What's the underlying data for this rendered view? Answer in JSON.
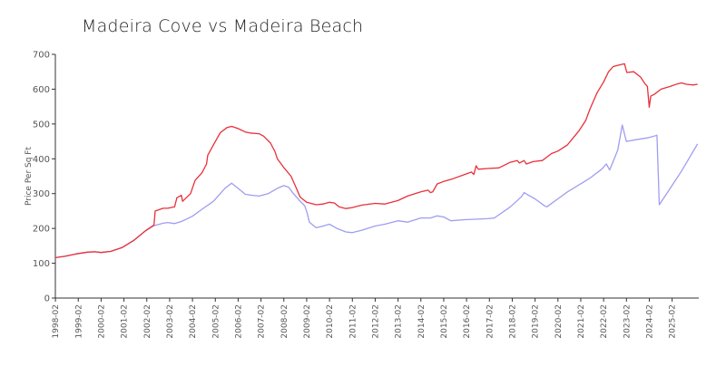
{
  "chart_data": {
    "type": "line",
    "title": "Madeira Cove vs Madeira Beach",
    "xlabel": "",
    "ylabel": "Price Per Sq Ft",
    "ylim": [
      0,
      700
    ],
    "yticks": [
      0,
      100,
      200,
      300,
      400,
      500,
      600,
      700
    ],
    "xlim": [
      1998.08,
      2026.25
    ],
    "xticks": [
      "1998-02",
      "1999-02",
      "2000-02",
      "2001-02",
      "2002-02",
      "2003-02",
      "2004-02",
      "2005-02",
      "2006-02",
      "2007-02",
      "2008-02",
      "2009-02",
      "2010-02",
      "2011-02",
      "2012-02",
      "2013-02",
      "2014-02",
      "2015-02",
      "2016-02",
      "2017-02",
      "2018-02",
      "2019-02",
      "2020-02",
      "2021-02",
      "2022-02",
      "2023-02",
      "2024-02",
      "2025-02"
    ],
    "grid": false,
    "legend": "none",
    "series": [
      {
        "color": "#e8303a",
        "points": [
          [
            1998.08,
            116
          ],
          [
            1998.5,
            120
          ],
          [
            1999.0,
            127
          ],
          [
            1999.5,
            132
          ],
          [
            1999.8,
            133
          ],
          [
            2000.08,
            131
          ],
          [
            2000.5,
            134
          ],
          [
            2001.0,
            145
          ],
          [
            2001.5,
            165
          ],
          [
            2002.0,
            192
          ],
          [
            2002.4,
            210
          ],
          [
            2002.45,
            250
          ],
          [
            2002.8,
            258
          ],
          [
            2003.0,
            258
          ],
          [
            2003.3,
            262
          ],
          [
            2003.4,
            288
          ],
          [
            2003.6,
            295
          ],
          [
            2003.65,
            278
          ],
          [
            2004.0,
            300
          ],
          [
            2004.2,
            338
          ],
          [
            2004.5,
            360
          ],
          [
            2004.7,
            385
          ],
          [
            2004.75,
            410
          ],
          [
            2005.0,
            440
          ],
          [
            2005.3,
            475
          ],
          [
            2005.6,
            490
          ],
          [
            2005.8,
            493
          ],
          [
            2006.08,
            487
          ],
          [
            2006.4,
            477
          ],
          [
            2006.6,
            474
          ],
          [
            2007.0,
            472
          ],
          [
            2007.2,
            465
          ],
          [
            2007.5,
            445
          ],
          [
            2007.7,
            420
          ],
          [
            2007.8,
            400
          ],
          [
            2008.08,
            375
          ],
          [
            2008.4,
            350
          ],
          [
            2008.6,
            320
          ],
          [
            2008.8,
            290
          ],
          [
            2009.08,
            275
          ],
          [
            2009.5,
            268
          ],
          [
            2009.8,
            270
          ],
          [
            2010.08,
            275
          ],
          [
            2010.3,
            273
          ],
          [
            2010.5,
            262
          ],
          [
            2010.8,
            257
          ],
          [
            2011.08,
            260
          ],
          [
            2011.5,
            267
          ],
          [
            2012.08,
            272
          ],
          [
            2012.5,
            270
          ],
          [
            2013.08,
            280
          ],
          [
            2013.5,
            293
          ],
          [
            2014.08,
            305
          ],
          [
            2014.4,
            310
          ],
          [
            2014.5,
            303
          ],
          [
            2014.6,
            305
          ],
          [
            2014.8,
            328
          ],
          [
            2015.08,
            335
          ],
          [
            2015.5,
            343
          ],
          [
            2016.0,
            355
          ],
          [
            2016.3,
            362
          ],
          [
            2016.4,
            355
          ],
          [
            2016.5,
            380
          ],
          [
            2016.6,
            370
          ],
          [
            2017.0,
            372
          ],
          [
            2017.5,
            374
          ],
          [
            2018.0,
            390
          ],
          [
            2018.3,
            395
          ],
          [
            2018.4,
            388
          ],
          [
            2018.6,
            395
          ],
          [
            2018.7,
            385
          ],
          [
            2019.0,
            392
          ],
          [
            2019.4,
            395
          ],
          [
            2019.6,
            405
          ],
          [
            2019.8,
            415
          ],
          [
            2020.08,
            422
          ],
          [
            2020.5,
            440
          ],
          [
            2021.0,
            480
          ],
          [
            2021.3,
            510
          ],
          [
            2021.5,
            545
          ],
          [
            2021.8,
            590
          ],
          [
            2022.08,
            620
          ],
          [
            2022.3,
            650
          ],
          [
            2022.5,
            665
          ],
          [
            2022.8,
            670
          ],
          [
            2023.0,
            673
          ],
          [
            2023.1,
            648
          ],
          [
            2023.4,
            650
          ],
          [
            2023.7,
            635
          ],
          [
            2023.9,
            615
          ],
          [
            2024.0,
            608
          ],
          [
            2024.08,
            548
          ],
          [
            2024.15,
            580
          ],
          [
            2024.3,
            585
          ],
          [
            2024.6,
            600
          ],
          [
            2025.0,
            608
          ],
          [
            2025.3,
            615
          ],
          [
            2025.5,
            618
          ],
          [
            2025.7,
            614
          ],
          [
            2026.0,
            612
          ],
          [
            2026.2,
            614
          ]
        ]
      },
      {
        "color": "#9f9df0",
        "points": [
          [
            1998.08,
            116
          ],
          [
            1998.5,
            120
          ],
          [
            1999.0,
            127
          ],
          [
            1999.5,
            132
          ],
          [
            1999.8,
            133
          ],
          [
            2000.08,
            131
          ],
          [
            2000.5,
            134
          ],
          [
            2001.0,
            145
          ],
          [
            2001.5,
            165
          ],
          [
            2002.0,
            192
          ],
          [
            2002.4,
            208
          ],
          [
            2002.8,
            215
          ],
          [
            2003.0,
            217
          ],
          [
            2003.3,
            214
          ],
          [
            2003.6,
            220
          ],
          [
            2004.08,
            235
          ],
          [
            2004.5,
            255
          ],
          [
            2005.0,
            278
          ],
          [
            2005.5,
            315
          ],
          [
            2005.8,
            330
          ],
          [
            2006.08,
            315
          ],
          [
            2006.4,
            298
          ],
          [
            2006.7,
            295
          ],
          [
            2007.0,
            293
          ],
          [
            2007.4,
            300
          ],
          [
            2007.8,
            315
          ],
          [
            2008.08,
            323
          ],
          [
            2008.3,
            318
          ],
          [
            2008.5,
            300
          ],
          [
            2008.8,
            278
          ],
          [
            2009.0,
            265
          ],
          [
            2009.1,
            245
          ],
          [
            2009.2,
            218
          ],
          [
            2009.5,
            202
          ],
          [
            2009.8,
            207
          ],
          [
            2010.08,
            212
          ],
          [
            2010.4,
            200
          ],
          [
            2010.8,
            190
          ],
          [
            2011.08,
            188
          ],
          [
            2011.5,
            195
          ],
          [
            2012.08,
            207
          ],
          [
            2012.5,
            212
          ],
          [
            2013.08,
            222
          ],
          [
            2013.5,
            218
          ],
          [
            2014.08,
            230
          ],
          [
            2014.5,
            230
          ],
          [
            2014.8,
            236
          ],
          [
            2015.08,
            233
          ],
          [
            2015.4,
            222
          ],
          [
            2016.0,
            225
          ],
          [
            2017.0,
            228
          ],
          [
            2017.3,
            230
          ],
          [
            2018.0,
            262
          ],
          [
            2018.5,
            292
          ],
          [
            2018.6,
            303
          ],
          [
            2018.8,
            295
          ],
          [
            2019.08,
            285
          ],
          [
            2019.5,
            265
          ],
          [
            2019.6,
            262
          ],
          [
            2020.08,
            285
          ],
          [
            2020.5,
            305
          ],
          [
            2021.0,
            325
          ],
          [
            2021.5,
            345
          ],
          [
            2022.0,
            370
          ],
          [
            2022.2,
            385
          ],
          [
            2022.35,
            368
          ],
          [
            2022.7,
            425
          ],
          [
            2022.9,
            497
          ],
          [
            2023.08,
            450
          ],
          [
            2023.5,
            455
          ],
          [
            2024.0,
            460
          ],
          [
            2024.3,
            465
          ],
          [
            2024.42,
            468
          ],
          [
            2024.52,
            268
          ],
          [
            2025.0,
            315
          ],
          [
            2025.5,
            365
          ],
          [
            2026.2,
            443
          ]
        ]
      }
    ]
  }
}
